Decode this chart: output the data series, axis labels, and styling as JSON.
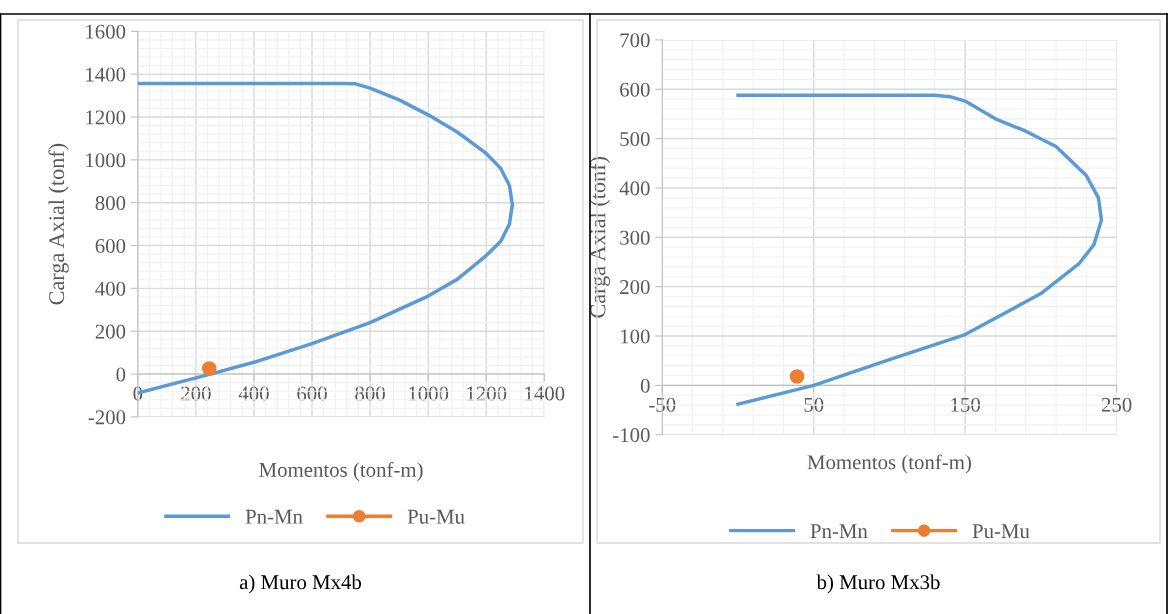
{
  "chart_data": [
    {
      "type": "line",
      "xlabel": "Momentos (tonf-m)",
      "ylabel": "Carga Axial (tonf)",
      "xlim": [
        0,
        1400
      ],
      "xticks": [
        0,
        200,
        400,
        600,
        800,
        1000,
        1200,
        1400
      ],
      "ylim": [
        -200,
        1600
      ],
      "yticks": [
        -200,
        0,
        200,
        400,
        600,
        800,
        1000,
        1200,
        1400,
        1600
      ],
      "grid": true,
      "legend": "bottom",
      "annotations": [
        "a) Muro Mx4b"
      ],
      "series": [
        {
          "name": "Pn-Mn",
          "color": "#5b9bd5",
          "marker": "none",
          "x": [
            0,
            250,
            400,
            600,
            800,
            1000,
            1100,
            1200,
            1250,
            1280,
            1290,
            1280,
            1250,
            1200,
            1100,
            1000,
            900,
            800,
            750,
            700,
            0
          ],
          "values": [
            -88,
            0,
            55,
            142,
            240,
            364,
            442,
            553,
            620,
            700,
            790,
            880,
            960,
            1030,
            1130,
            1210,
            1280,
            1335,
            1355,
            1356,
            1356
          ]
        },
        {
          "name": "Pu-Mu",
          "type": "scatter",
          "color": "#ed7d31",
          "marker": "circle",
          "x": [
            246
          ],
          "values": [
            26
          ]
        }
      ]
    },
    {
      "type": "line",
      "xlabel": "Momentos (tonf-m)",
      "ylabel": "Carga Axial (tonf)",
      "xlim": [
        -50,
        250
      ],
      "xticks": [
        -50,
        50,
        150,
        250
      ],
      "ylim": [
        -100,
        700
      ],
      "yticks": [
        -100,
        0,
        100,
        200,
        300,
        400,
        500,
        600,
        700
      ],
      "grid": true,
      "legend": "bottom",
      "annotations": [
        "b) Muro Mx3b"
      ],
      "series": [
        {
          "name": "Pn-Mn",
          "color": "#5b9bd5",
          "marker": "none",
          "x": [
            0,
            50,
            100,
            150,
            200,
            225,
            235,
            240,
            238,
            230,
            210,
            190,
            170,
            150,
            140,
            130,
            0
          ],
          "values": [
            -38,
            0,
            52,
            103,
            186,
            246,
            285,
            335,
            380,
            425,
            484,
            515,
            540,
            576,
            585,
            588,
            588
          ]
        },
        {
          "name": "Pu-Mu",
          "type": "scatter",
          "color": "#ed7d31",
          "marker": "circle",
          "x": [
            39
          ],
          "values": [
            18
          ]
        }
      ]
    }
  ]
}
